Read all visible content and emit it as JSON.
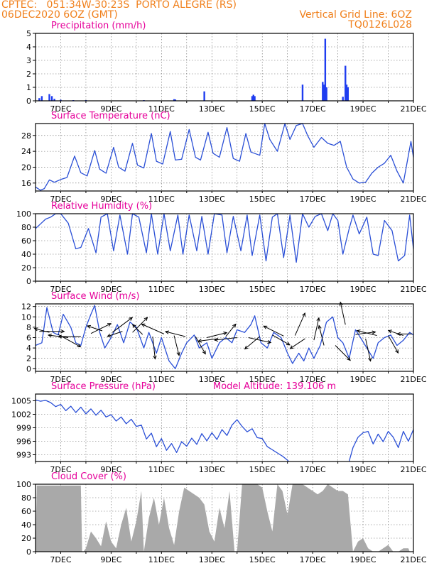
{
  "header": {
    "line1_left": "CPTEC:   051:34W-30:23S  PORTO ALEGRE (RS)",
    "line2_left": "06DEC2020 6OZ (GMT)",
    "line1_right": "Vertical Grid Line: 6OZ",
    "line2_right": "TQ0126L028"
  },
  "x_ticks": [
    "7DEC",
    "9DEC",
    "11DEC",
    "13DEC",
    "15DEC",
    "17DEC",
    "19DEC",
    "21DEC"
  ],
  "chart_data": [
    {
      "id": "precip",
      "type": "bar",
      "title": "Precipitation (mm/h)",
      "ylim": [
        0,
        5
      ],
      "yticks": [
        "0",
        "1",
        "2",
        "3",
        "4",
        "5"
      ],
      "color": "#1f3df0",
      "x_unit": "days since 06DEC2020 06Z",
      "bars": [
        [
          0.15,
          0.2
        ],
        [
          0.25,
          0.35
        ],
        [
          0.55,
          0.5
        ],
        [
          0.65,
          0.35
        ],
        [
          0.75,
          0.15
        ],
        [
          1.0,
          0.08
        ],
        [
          1.5,
          0.05
        ],
        [
          2.0,
          0.05
        ],
        [
          4.3,
          0.05
        ],
        [
          5.5,
          0.12
        ],
        [
          5.55,
          0.1
        ],
        [
          6.7,
          0.7
        ],
        [
          8.6,
          0.35
        ],
        [
          8.65,
          0.45
        ],
        [
          8.7,
          0.35
        ],
        [
          10.6,
          1.2
        ],
        [
          11.4,
          1.4
        ],
        [
          11.45,
          1.2
        ],
        [
          11.5,
          4.6
        ],
        [
          11.55,
          1.0
        ],
        [
          12.2,
          0.3
        ],
        [
          12.3,
          2.6
        ],
        [
          12.35,
          1.2
        ],
        [
          12.4,
          1.0
        ]
      ]
    },
    {
      "id": "temp",
      "type": "line",
      "title": "Surface Temperature (nC)",
      "ylim": [
        14,
        31
      ],
      "yticks": [
        "16",
        "20",
        "24",
        "28"
      ],
      "ytick_values": [
        16,
        20,
        24,
        28
      ],
      "color": "#2a4fd6",
      "x": [
        0,
        0.2,
        0.35,
        0.55,
        0.75,
        1,
        1.25,
        1.55,
        1.8,
        2.05,
        2.35,
        2.55,
        2.8,
        3.1,
        3.3,
        3.55,
        3.85,
        4.05,
        4.3,
        4.6,
        4.8,
        5.05,
        5.35,
        5.55,
        5.8,
        6.1,
        6.35,
        6.55,
        6.85,
        7.05,
        7.3,
        7.6,
        7.85,
        8.1,
        8.35,
        8.55,
        8.9,
        9.1,
        9.3,
        9.6,
        9.9,
        10.1,
        10.35,
        10.6,
        10.8,
        11.05,
        11.35,
        11.6,
        11.85,
        12.1,
        12.35,
        12.6,
        12.85,
        13.1,
        13.35,
        13.6,
        13.85,
        14.1,
        14.35,
        14.6,
        14.9,
        15
      ],
      "y": [
        15,
        14.2,
        14.6,
        16.8,
        16.2,
        16.9,
        17.4,
        22.8,
        18.6,
        17.8,
        24.2,
        19.5,
        18.5,
        25,
        20,
        19,
        26,
        20.5,
        19.8,
        28.5,
        21.5,
        20.8,
        29,
        21.8,
        22,
        29.5,
        22.5,
        21.8,
        28.8,
        23.5,
        22.5,
        30,
        22.2,
        21.5,
        28.5,
        23.8,
        23,
        31,
        27,
        24,
        31,
        27,
        30.5,
        31,
        28,
        25,
        27.5,
        26,
        25.5,
        26.5,
        20,
        17,
        16,
        16.2,
        18.5,
        20,
        21,
        23,
        19,
        16,
        26.5,
        22.5
      ]
    },
    {
      "id": "rh",
      "type": "line",
      "title": "Relative Humidity (%)",
      "ylim": [
        0,
        100
      ],
      "yticks": [
        "0",
        "20",
        "40",
        "60",
        "80",
        "100"
      ],
      "ytick_values": [
        0,
        20,
        40,
        60,
        80,
        100
      ],
      "color": "#2a4fd6",
      "x": [
        0,
        0.2,
        0.4,
        0.6,
        0.8,
        1.0,
        1.3,
        1.6,
        1.8,
        2.1,
        2.4,
        2.6,
        2.85,
        3.1,
        3.35,
        3.65,
        3.85,
        4.1,
        4.4,
        4.6,
        4.85,
        5.1,
        5.35,
        5.65,
        5.85,
        6.1,
        6.4,
        6.6,
        6.85,
        7.1,
        7.4,
        7.6,
        7.85,
        8.15,
        8.4,
        8.6,
        8.9,
        9.15,
        9.4,
        9.6,
        9.85,
        10.1,
        10.35,
        10.6,
        10.85,
        11.1,
        11.35,
        11.6,
        11.8,
        12.0,
        12.2,
        12.45,
        12.6,
        12.85,
        13.15,
        13.4,
        13.6,
        13.85,
        14.15,
        14.4,
        14.65,
        14.85,
        15
      ],
      "y": [
        78,
        85,
        92,
        95,
        100,
        100,
        86,
        48,
        50,
        78,
        42,
        95,
        100,
        45,
        98,
        40,
        100,
        95,
        42,
        100,
        40,
        100,
        45,
        98,
        40,
        98,
        45,
        96,
        40,
        100,
        98,
        42,
        96,
        45,
        98,
        38,
        98,
        30,
        95,
        100,
        35,
        98,
        28,
        100,
        80,
        96,
        100,
        75,
        100,
        90,
        40,
        78,
        98,
        70,
        95,
        40,
        38,
        90,
        75,
        30,
        38,
        98,
        48
      ]
    },
    {
      "id": "wind",
      "type": "line",
      "title": "Surface Wind (m/s)",
      "ylim": [
        -0.5,
        12.5
      ],
      "yticks": [
        "0",
        "2",
        "4",
        "6",
        "8",
        "10",
        "12"
      ],
      "ytick_values": [
        0,
        2,
        4,
        6,
        8,
        10,
        12
      ],
      "color": "#2a4fd6",
      "x": [
        0,
        0.25,
        0.45,
        0.7,
        0.9,
        1.1,
        1.4,
        1.6,
        1.8,
        2.0,
        2.2,
        2.35,
        2.55,
        2.75,
        3.0,
        3.25,
        3.5,
        3.75,
        4.0,
        4.3,
        4.5,
        4.8,
        5.0,
        5.3,
        5.55,
        5.8,
        6.0,
        6.3,
        6.5,
        6.8,
        7.0,
        7.3,
        7.55,
        7.8,
        8.0,
        8.3,
        8.55,
        8.7,
        8.95,
        9.2,
        9.45,
        9.75,
        10.0,
        10.2,
        10.45,
        10.65,
        10.85,
        11.05,
        11.3,
        11.55,
        11.8,
        12.0,
        12.2,
        12.45,
        12.7,
        12.9,
        13.15,
        13.4,
        13.6,
        13.85,
        14.1,
        14.35,
        14.6,
        14.85,
        15
      ],
      "y": [
        4.5,
        5,
        11.8,
        7,
        6.5,
        10.5,
        8,
        5,
        4.5,
        8,
        10.5,
        12.2,
        7,
        4,
        6,
        8.5,
        5,
        9,
        8,
        4,
        7,
        3,
        6,
        1.5,
        0,
        3,
        5,
        6.5,
        4,
        5,
        2,
        5,
        6,
        5,
        7.5,
        7,
        8.5,
        10.2,
        5,
        4,
        7,
        6,
        3,
        1,
        3,
        1.5,
        4,
        2,
        4.5,
        9,
        10,
        6,
        5,
        2,
        7.5,
        6,
        4,
        2,
        5,
        6,
        6.5,
        4.5,
        5.5,
        7,
        6.5
      ],
      "arrows": [
        [
          0.15,
          7.2,
          0.5,
          0.0
        ],
        [
          0.55,
          7.0,
          -0.3,
          0.08
        ],
        [
          0.9,
          6.6,
          0.45,
          -0.25
        ],
        [
          1.3,
          6.0,
          -0.4,
          0.05
        ],
        [
          1.8,
          6.2,
          -0.45,
          0.0
        ],
        [
          2.2,
          6.8,
          0.4,
          0.2
        ],
        [
          2.65,
          7.3,
          -0.3,
          0.1
        ],
        [
          3.05,
          7.0,
          0.4,
          0.3
        ],
        [
          3.45,
          7.2,
          -0.3,
          -0.1
        ],
        [
          3.85,
          7.0,
          0.3,
          0.3
        ],
        [
          4.25,
          6.6,
          -0.2,
          0.2
        ],
        [
          4.65,
          6.2,
          0.05,
          -0.45
        ],
        [
          5.1,
          6.7,
          -0.45,
          0.2
        ],
        [
          5.5,
          6.4,
          0.1,
          -0.4
        ],
        [
          5.95,
          6.2,
          -0.4,
          0.1
        ],
        [
          6.35,
          6.2,
          0.2,
          -0.35
        ],
        [
          6.8,
          6.0,
          0.4,
          0.1
        ],
        [
          7.25,
          5.8,
          -0.4,
          -0.05
        ],
        [
          7.55,
          6.2,
          0.2,
          0.25
        ],
        [
          8.0,
          6.0,
          -0.45,
          -0.05
        ],
        [
          8.45,
          6.0,
          0.45,
          -0.1
        ],
        [
          8.9,
          6.2,
          -0.3,
          -0.25
        ],
        [
          9.4,
          6.5,
          0.35,
          -0.2
        ],
        [
          9.85,
          6.3,
          -0.4,
          0.2
        ],
        [
          10.3,
          6.4,
          0.2,
          0.45
        ],
        [
          10.7,
          5.8,
          -0.3,
          -0.2
        ],
        [
          11.05,
          5.5,
          0.1,
          0.45
        ],
        [
          11.45,
          4.5,
          -0.1,
          0.4
        ],
        [
          11.9,
          4.5,
          0.3,
          -0.3
        ],
        [
          12.3,
          8.5,
          -0.1,
          0.45
        ],
        [
          12.7,
          6.6,
          0.4,
          0.05
        ],
        [
          13.1,
          5.8,
          0.1,
          -0.45
        ],
        [
          13.55,
          6.4,
          -0.4,
          0.1
        ],
        [
          14.0,
          6.4,
          0.2,
          -0.35
        ],
        [
          14.6,
          6.4,
          -0.3,
          0.1
        ],
        [
          14.95,
          6.7,
          -0.3,
          0.0
        ]
      ]
    },
    {
      "id": "pressure",
      "type": "line",
      "title": "Surface Pressure (hPa)",
      "annotation": "Model Altitude: 139.106 m",
      "ylim": [
        991.5,
        1006.5
      ],
      "yticks": [
        "993",
        "996",
        "999",
        "1002",
        "1005"
      ],
      "ytick_values": [
        993,
        996,
        999,
        1002,
        1005
      ],
      "color": "#2a4fd6",
      "x": [
        0,
        0.2,
        0.4,
        0.6,
        0.8,
        1.0,
        1.2,
        1.4,
        1.6,
        1.8,
        2.0,
        2.2,
        2.4,
        2.6,
        2.8,
        3.0,
        3.2,
        3.4,
        3.6,
        3.8,
        4.0,
        4.2,
        4.4,
        4.6,
        4.8,
        5.0,
        5.2,
        5.4,
        5.6,
        5.8,
        6.0,
        6.2,
        6.4,
        6.6,
        6.8,
        7.0,
        7.2,
        7.4,
        7.6,
        7.8,
        8.0,
        8.2,
        8.4,
        8.6,
        8.8,
        9.0,
        9.2,
        9.4,
        9.6,
        9.8,
        10.0,
        10.05,
        null,
        12.45,
        12.6,
        12.8,
        13.0,
        13.2,
        13.4,
        13.6,
        13.8,
        14.0,
        14.2,
        14.4,
        14.6,
        14.8,
        15.0
      ],
      "y": [
        1005.2,
        1004.9,
        1005.1,
        1004.6,
        1003.7,
        1004.2,
        1002.8,
        1003.8,
        1002.4,
        1003.6,
        1002.1,
        1003.2,
        1001.8,
        1002.9,
        1001.4,
        1001.9,
        1000.5,
        1001.4,
        999.9,
        1000.9,
        999.3,
        999.6,
        996.5,
        997.8,
        994.8,
        996.6,
        994.0,
        995.5,
        993.5,
        995.9,
        994.9,
        996.7,
        995.3,
        997.7,
        996.1,
        997.9,
        996.4,
        998.6,
        997.3,
        999.6,
        1000.8,
        999.3,
        998.1,
        998.8,
        996.8,
        996.6,
        994.8,
        994.1,
        993.4,
        992.7,
        991.8,
        991.5,
        null,
        991.6,
        994.6,
        996.9,
        997.9,
        998.2,
        995.4,
        997.6,
        995.9,
        998.2,
        996.9,
        994.6,
        998.2,
        996.0,
        998.6
      ]
    },
    {
      "id": "cloud",
      "type": "area",
      "title": "Cloud Cover (%)",
      "ylim": [
        0,
        100
      ],
      "yticks": [
        "0",
        "20",
        "40",
        "60",
        "80",
        "100"
      ],
      "ytick_values": [
        0,
        20,
        40,
        60,
        80,
        100
      ],
      "color": "#a9a9a9",
      "x": [
        0,
        0.05,
        0.1,
        1.8,
        1.85,
        1.9,
        2.0,
        2.2,
        2.4,
        2.6,
        2.8,
        3.0,
        3.2,
        3.4,
        3.6,
        3.8,
        4.0,
        4.2,
        4.3,
        4.5,
        4.7,
        4.9,
        5.1,
        5.3,
        5.5,
        5.7,
        5.9,
        6.1,
        6.3,
        6.5,
        6.7,
        6.9,
        7.1,
        7.3,
        7.5,
        7.7,
        7.9,
        8.0,
        8.2,
        8.4,
        8.6,
        8.8,
        9.0,
        9.2,
        9.4,
        9.6,
        9.8,
        10.0,
        10.2,
        10.4,
        10.6,
        10.8,
        11.0,
        11.2,
        11.4,
        11.6,
        11.8,
        12.0,
        12.2,
        12.4,
        12.6,
        12.8,
        13.0,
        13.2,
        13.4,
        13.6,
        13.8,
        14.0,
        14.2,
        14.4,
        14.6,
        14.8,
        14.85
      ],
      "y": [
        0,
        98,
        98,
        98,
        0,
        0,
        5,
        30,
        20,
        8,
        45,
        15,
        5,
        40,
        65,
        15,
        45,
        90,
        0,
        50,
        80,
        40,
        80,
        35,
        10,
        60,
        95,
        90,
        85,
        80,
        70,
        30,
        15,
        65,
        35,
        90,
        0,
        0,
        100,
        100,
        100,
        100,
        95,
        60,
        30,
        100,
        90,
        55,
        100,
        100,
        100,
        95,
        90,
        85,
        90,
        100,
        95,
        90,
        90,
        85,
        0,
        15,
        20,
        5,
        0,
        0,
        5,
        10,
        0,
        0,
        5,
        5,
        0
      ]
    }
  ]
}
